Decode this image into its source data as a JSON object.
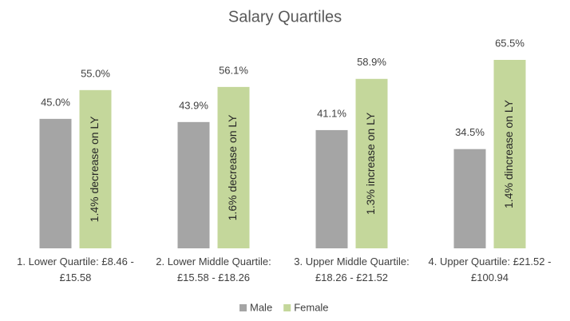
{
  "chart_data": {
    "type": "bar",
    "title": "Salary Quartiles",
    "categories": [
      "1. Lower Quartile: £8.46 - £15.58",
      "2. Lower Middle Quartile: £15.58 - £18.26",
      "3. Upper Middle Quartile: £18.26 - £21.52",
      "4. Upper Quartile: £21.52 - £100.94"
    ],
    "series": [
      {
        "name": "Male",
        "color": "#a5a5a5",
        "values": [
          45.0,
          43.9,
          41.1,
          34.5
        ],
        "value_labels": [
          "45.0%",
          "43.9%",
          "41.1%",
          "34.5%"
        ]
      },
      {
        "name": "Female",
        "color": "#c4d79b",
        "values": [
          55.0,
          56.1,
          58.9,
          65.5
        ],
        "value_labels": [
          "55.0%",
          "56.1%",
          "58.9%",
          "65.5%"
        ],
        "annotations": [
          "1.4% decrease on LY",
          "1.6% decrease on LY",
          "1.3% increase on LY",
          "1.4% dincrease on LY"
        ]
      }
    ],
    "legend": "bottom"
  }
}
